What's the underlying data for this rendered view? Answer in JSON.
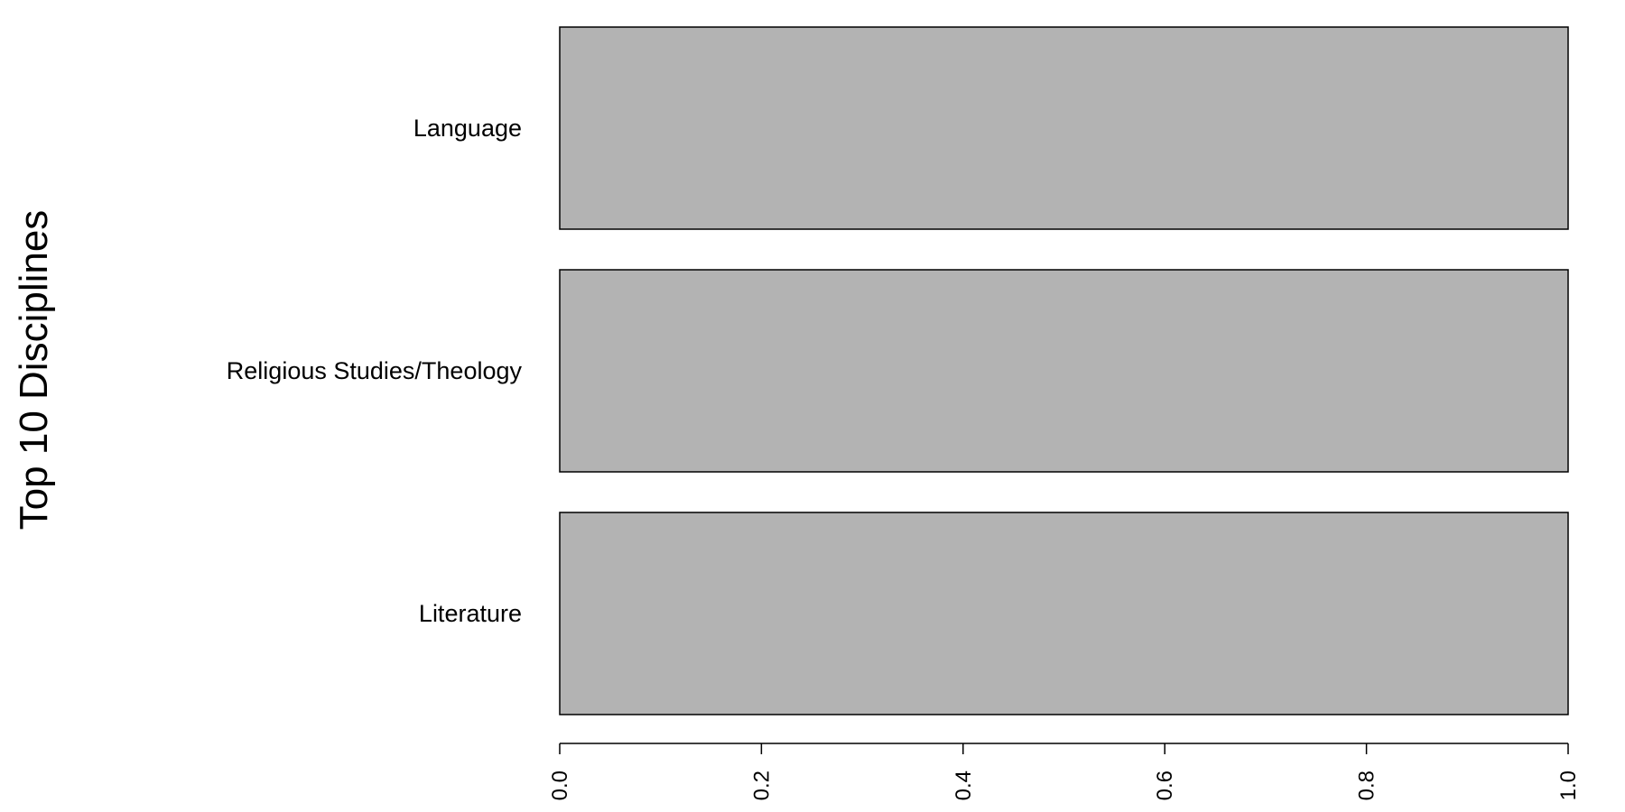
{
  "chart_data": {
    "type": "bar",
    "orientation": "horizontal",
    "title": "",
    "xlabel": "",
    "ylabel": "Top 10 Disciplines",
    "categories": [
      "Language",
      "Religious Studies/Theology",
      "Literature"
    ],
    "values": [
      1.0,
      1.0,
      1.0
    ],
    "xlim": [
      0,
      1
    ],
    "xticks": [
      "0.0",
      "0.2",
      "0.4",
      "0.6",
      "0.8",
      "1.0"
    ],
    "bar_color": "#b3b3b3",
    "bar_border_color": "#000000",
    "grid": false
  }
}
